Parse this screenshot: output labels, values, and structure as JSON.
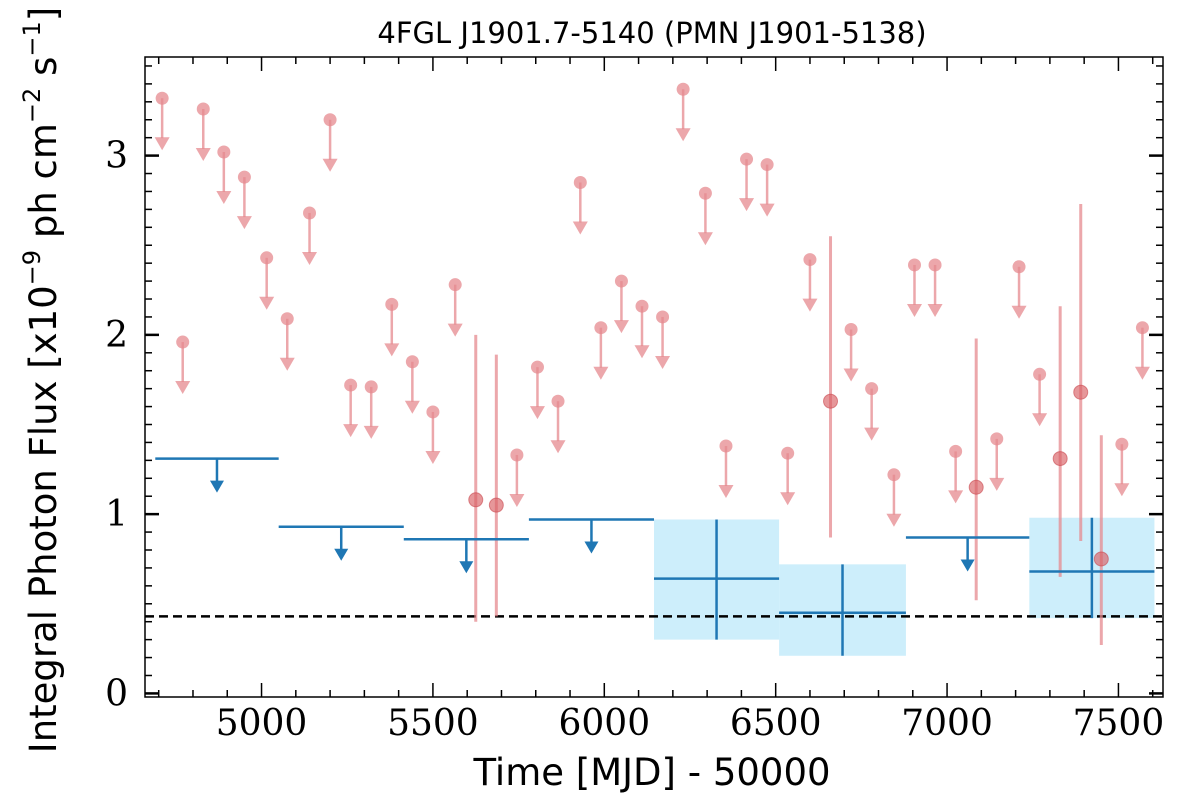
{
  "chart_data": {
    "type": "scatter",
    "title": "4FGL J1901.7-5140 (PMN J1901-5138)",
    "xlabel": "Time [MJD] - 50000",
    "ylabel_parts": [
      "Integral Photon Flux [x10",
      "−9",
      " ph cm",
      "−2",
      " s",
      "−1",
      "]"
    ],
    "xlim": [
      4660,
      7630
    ],
    "ylim": [
      -0.02,
      3.55
    ],
    "x_ticks": [
      5000,
      5500,
      6000,
      6500,
      7000,
      7500
    ],
    "y_ticks": [
      0,
      1,
      2,
      3
    ],
    "grid": false,
    "legend": "none",
    "colors": {
      "short_bins": "#e58a8f",
      "long_bins": "#1f77b4",
      "error_band": "#cdeefb",
      "reference_line": "#000000"
    },
    "reference_level": 0.43,
    "short_bins_upper_limits": [
      {
        "x": 4710,
        "y": 3.32
      },
      {
        "x": 4770,
        "y": 1.96
      },
      {
        "x": 4830,
        "y": 3.26
      },
      {
        "x": 4890,
        "y": 3.02
      },
      {
        "x": 4950,
        "y": 2.88
      },
      {
        "x": 5015,
        "y": 2.43
      },
      {
        "x": 5075,
        "y": 2.09
      },
      {
        "x": 5140,
        "y": 2.68
      },
      {
        "x": 5200,
        "y": 3.2
      },
      {
        "x": 5260,
        "y": 1.72
      },
      {
        "x": 5320,
        "y": 1.71
      },
      {
        "x": 5380,
        "y": 2.17
      },
      {
        "x": 5440,
        "y": 1.85
      },
      {
        "x": 5500,
        "y": 1.57
      },
      {
        "x": 5565,
        "y": 2.28
      },
      {
        "x": 5745,
        "y": 1.33
      },
      {
        "x": 5805,
        "y": 1.82
      },
      {
        "x": 5865,
        "y": 1.63
      },
      {
        "x": 5930,
        "y": 2.85
      },
      {
        "x": 5990,
        "y": 2.04
      },
      {
        "x": 6050,
        "y": 2.3
      },
      {
        "x": 6110,
        "y": 2.16
      },
      {
        "x": 6170,
        "y": 2.1
      },
      {
        "x": 6230,
        "y": 3.37
      },
      {
        "x": 6295,
        "y": 2.79
      },
      {
        "x": 6355,
        "y": 1.38
      },
      {
        "x": 6415,
        "y": 2.98
      },
      {
        "x": 6475,
        "y": 2.95
      },
      {
        "x": 6535,
        "y": 1.34
      },
      {
        "x": 6600,
        "y": 2.42
      },
      {
        "x": 6720,
        "y": 2.03
      },
      {
        "x": 6780,
        "y": 1.7
      },
      {
        "x": 6845,
        "y": 1.22
      },
      {
        "x": 6905,
        "y": 2.39
      },
      {
        "x": 6965,
        "y": 2.39
      },
      {
        "x": 7025,
        "y": 1.35
      },
      {
        "x": 7145,
        "y": 1.42
      },
      {
        "x": 7210,
        "y": 2.38
      },
      {
        "x": 7270,
        "y": 1.78
      },
      {
        "x": 7510,
        "y": 1.39
      },
      {
        "x": 7570,
        "y": 2.04
      }
    ],
    "short_bins_detections": [
      {
        "x": 5625,
        "y": 1.08,
        "y_low": 0.4,
        "y_high": 2.0
      },
      {
        "x": 5685,
        "y": 1.05,
        "y_low": 0.43,
        "y_high": 1.89
      },
      {
        "x": 6660,
        "y": 1.63,
        "y_low": 0.87,
        "y_high": 2.55
      },
      {
        "x": 7085,
        "y": 1.15,
        "y_low": 0.52,
        "y_high": 1.98
      },
      {
        "x": 7330,
        "y": 1.31,
        "y_low": 0.65,
        "y_high": 2.16
      },
      {
        "x": 7390,
        "y": 1.68,
        "y_low": 0.85,
        "y_high": 2.73
      },
      {
        "x": 7450,
        "y": 0.75,
        "y_low": 0.27,
        "y_high": 1.44
      }
    ],
    "long_bins_upper_limits": [
      {
        "x_start": 4690,
        "x_end": 5050,
        "y": 1.31
      },
      {
        "x_start": 5050,
        "x_end": 5415,
        "y": 0.93
      },
      {
        "x_start": 5415,
        "x_end": 5780,
        "y": 0.86
      },
      {
        "x_start": 5780,
        "x_end": 6145,
        "y": 0.97
      },
      {
        "x_start": 6880,
        "x_end": 7240,
        "y": 0.87
      }
    ],
    "long_bins_detections": [
      {
        "x_start": 6145,
        "x_end": 6510,
        "y": 0.64,
        "y_low": 0.3,
        "y_high": 0.97
      },
      {
        "x_start": 6510,
        "x_end": 6880,
        "y": 0.45,
        "y_low": 0.21,
        "y_high": 0.72
      },
      {
        "x_start": 7240,
        "x_end": 7605,
        "y": 0.68,
        "y_low": 0.42,
        "y_high": 0.98
      }
    ]
  }
}
